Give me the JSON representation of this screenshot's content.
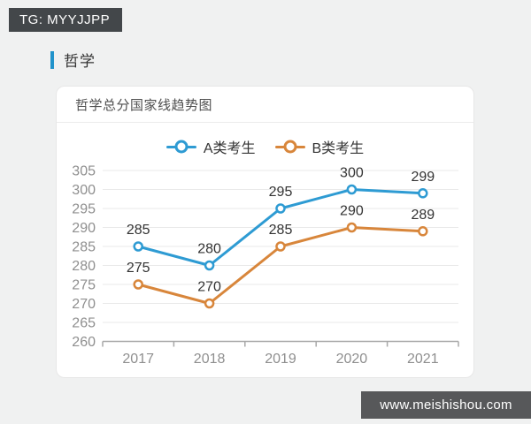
{
  "watermarks": {
    "tg": "TG: MYYJJPP",
    "site": "www.meishishou.com"
  },
  "section": {
    "title": "哲学"
  },
  "card": {
    "title": "哲学总分国家线趋势图"
  },
  "chart_data": {
    "type": "line",
    "title": "哲学总分国家线趋势图",
    "categories": [
      "2017",
      "2018",
      "2019",
      "2020",
      "2021"
    ],
    "series": [
      {
        "name": "A类考生",
        "color": "#2E9BD3",
        "values": [
          285,
          280,
          295,
          300,
          299
        ]
      },
      {
        "name": "B类考生",
        "color": "#D8863B",
        "values": [
          275,
          270,
          285,
          290,
          289
        ]
      }
    ],
    "xlabel": "",
    "ylabel": "",
    "ylim": [
      260,
      305
    ],
    "yticks": [
      260,
      265,
      270,
      275,
      280,
      285,
      290,
      295,
      300,
      305
    ],
    "grid": true,
    "legend_position": "top",
    "data_labels": true,
    "marker": "hollow-circle"
  },
  "colors": {
    "accent_bar": "#2193cb",
    "axis_text": "#8f8f8f",
    "label_text": "#333333",
    "grid_line": "#e9e9e9",
    "axis_line": "#a8a8a8",
    "page_bg": "#f0f1f1",
    "card_bg": "#ffffff",
    "tg_badge_bg": "#43474a",
    "site_badge_bg": "#57585a"
  }
}
